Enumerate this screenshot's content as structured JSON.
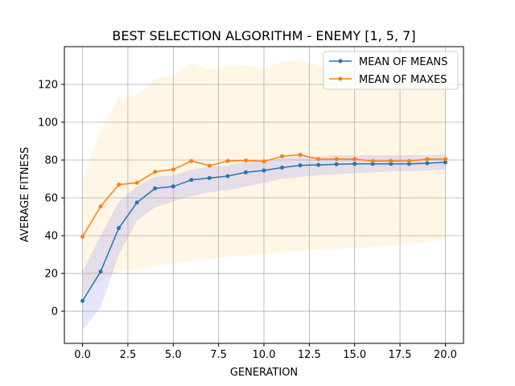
{
  "chart_data": {
    "type": "line",
    "title": "BEST SELECTION ALGORITHM - ENEMY [1, 5, 7]",
    "xlabel": "GENERATION",
    "ylabel": "AVERAGE FITNESS",
    "xlim": [
      -1,
      21
    ],
    "ylim": [
      -17,
      140
    ],
    "xticks": [
      0,
      2.5,
      5,
      7.5,
      10,
      12.5,
      15,
      17.5,
      20
    ],
    "xtick_labels": [
      "0.0",
      "2.5",
      "5.0",
      "7.5",
      "10.0",
      "12.5",
      "15.0",
      "17.5",
      "20.0"
    ],
    "yticks": [
      0,
      20,
      40,
      60,
      80,
      100,
      120
    ],
    "ytick_labels": [
      "0",
      "20",
      "40",
      "60",
      "80",
      "100",
      "120"
    ],
    "grid": true,
    "legend_position": "top-right",
    "x": [
      0,
      1,
      2,
      3,
      4,
      5,
      6,
      7,
      8,
      9,
      10,
      11,
      12,
      13,
      14,
      15,
      16,
      17,
      18,
      19,
      20
    ],
    "series": [
      {
        "name": "MEAN OF MEANS",
        "color": "#1f77b4",
        "band_color": "#0000ff",
        "values": [
          5.5,
          21,
          44,
          57.5,
          65,
          66,
          69.5,
          70.5,
          71.5,
          73.5,
          74.5,
          76,
          77.2,
          77.4,
          77.8,
          78,
          78,
          78,
          78,
          78.3,
          78.8
        ],
        "band_lower": [
          -10,
          2,
          30,
          48,
          55,
          58,
          61,
          63,
          64,
          66,
          68,
          70,
          71,
          72,
          72.5,
          73,
          73.5,
          74,
          74,
          74.5,
          75
        ],
        "band_upper": [
          21,
          40,
          58,
          66,
          71,
          72,
          75,
          76.5,
          77,
          79,
          80,
          81,
          82,
          82,
          82.5,
          82.5,
          82.5,
          82.5,
          82.5,
          82.5,
          83
        ]
      },
      {
        "name": "MEAN OF MAXES",
        "color": "#ff7f0e",
        "band_color": "#ffa500",
        "values": [
          39.5,
          55.5,
          67,
          68,
          73.8,
          75,
          79.5,
          77,
          79.5,
          79.8,
          79.3,
          82,
          82.8,
          80.5,
          80.5,
          80.5,
          79.5,
          79.5,
          79.5,
          80.5,
          80.5
        ],
        "band_lower": [
          9,
          16,
          21,
          22,
          24,
          25,
          27,
          27.5,
          29,
          29.5,
          30,
          31.5,
          32,
          32.5,
          33,
          33.5,
          34,
          34.5,
          35.5,
          36.5,
          38
        ],
        "band_upper": [
          69,
          96,
          113,
          114.5,
          123,
          124.5,
          131,
          127.5,
          130,
          130,
          128.5,
          132,
          133,
          130,
          127,
          126,
          124.5,
          124,
          123,
          123,
          123
        ]
      }
    ]
  }
}
